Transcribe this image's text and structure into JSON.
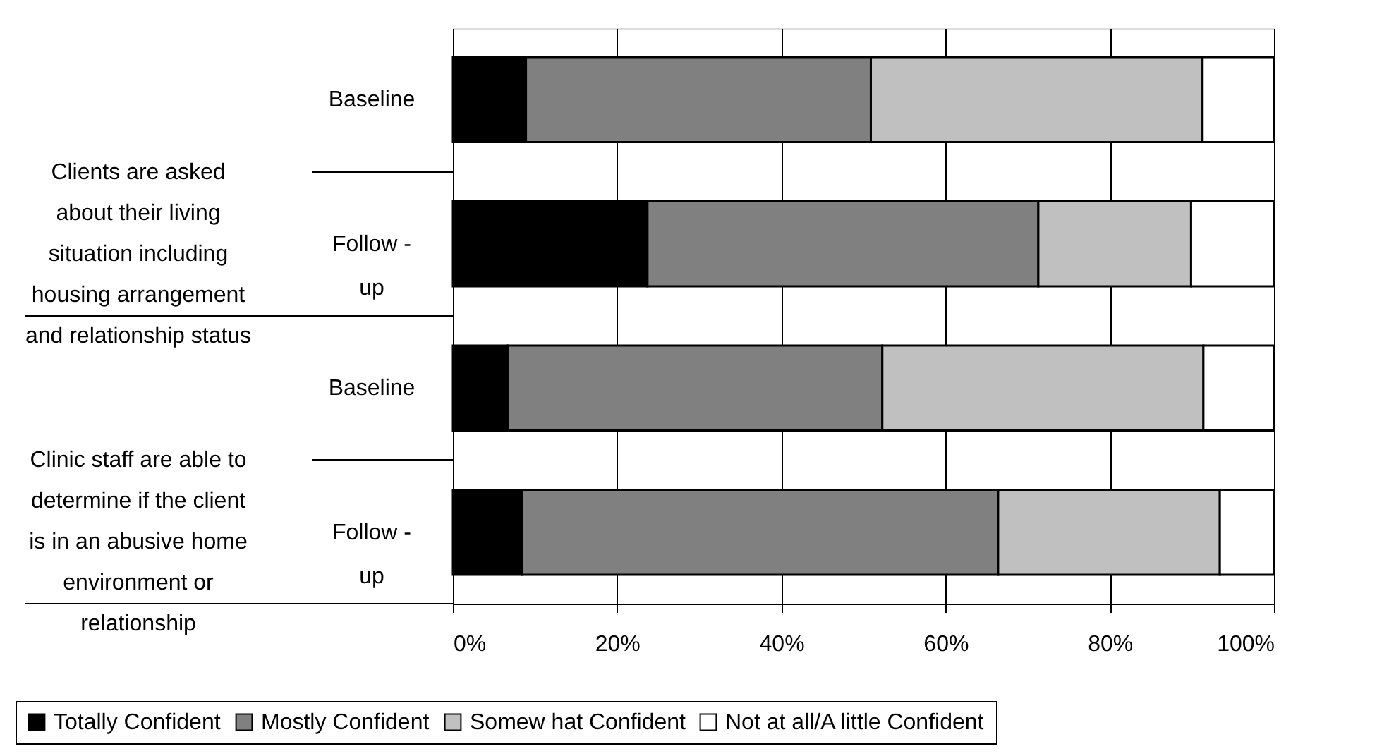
{
  "chart_data": {
    "type": "bar",
    "orientation": "horizontal",
    "stacked": true,
    "categories": [
      "Baseline",
      "Follow - up",
      "Baseline",
      "Follow - up"
    ],
    "annotations": [
      "Clients are asked\nabout their living\nsituation including\nhousing arrangement\nand relationship status",
      "Clinic staff are able to\ndetermine if the client\nis in an abusive home\nenvironment or\nrelationship"
    ],
    "series": [
      {
        "name": "Totally Confident",
        "color": "#000000",
        "values": [
          8.9,
          23.7,
          6.7,
          8.4
        ]
      },
      {
        "name": "Mostly Confident",
        "color": "#808080",
        "values": [
          42.0,
          47.6,
          45.6,
          58.0
        ]
      },
      {
        "name": "Somew hat Confident",
        "color": "#c0c0c0",
        "values": [
          40.4,
          18.6,
          39.1,
          27.0
        ]
      },
      {
        "name": "Not at all/A little Confident",
        "color": "#ffffff",
        "values": [
          8.7,
          10.1,
          8.6,
          6.6
        ]
      }
    ],
    "xlim": [
      0,
      100
    ],
    "xticks": [
      {
        "value": 0,
        "label": "0%"
      },
      {
        "value": 20,
        "label": "20%"
      },
      {
        "value": 40,
        "label": "40%"
      },
      {
        "value": 60,
        "label": "60%"
      },
      {
        "value": 80,
        "label": "80%"
      },
      {
        "value": 100,
        "label": "100%"
      }
    ],
    "grid": "x",
    "legend": "bottom"
  }
}
